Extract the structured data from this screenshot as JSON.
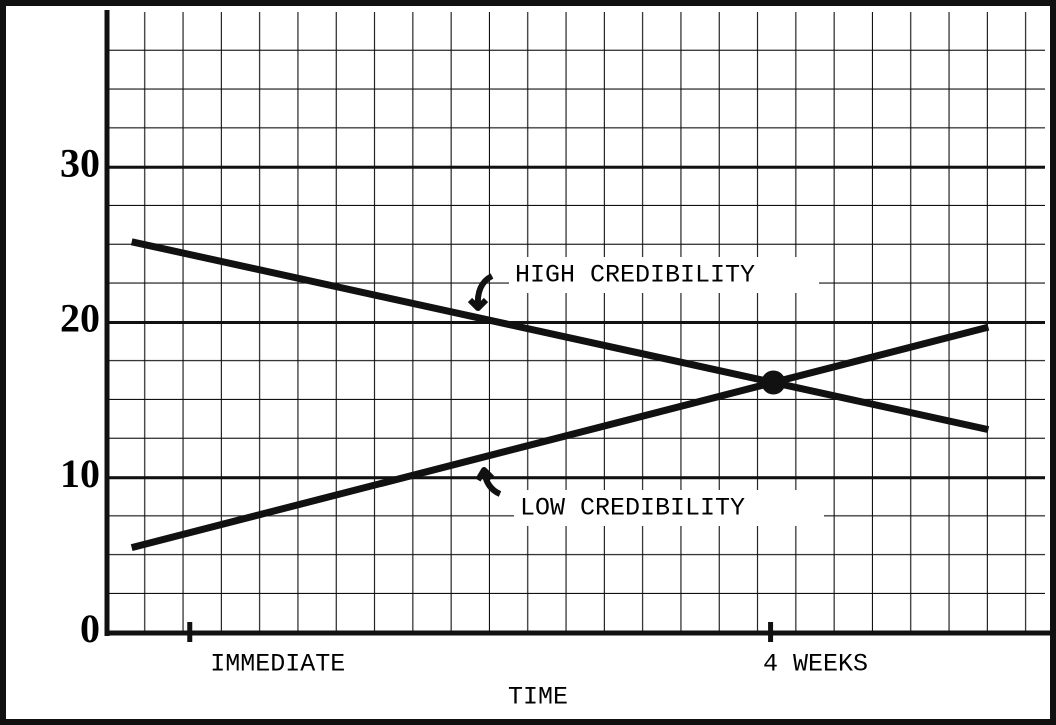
{
  "chart_data": {
    "type": "line",
    "x_label": "TIME",
    "x": [
      -0.4,
      5.5
    ],
    "series": [
      {
        "name": "HIGH CREDIBILITY",
        "color": "#111111",
        "values": [
          25.2,
          13.1
        ]
      },
      {
        "name": "LOW CREDIBILITY",
        "color": "#111111",
        "values": [
          5.5,
          19.7
        ]
      }
    ],
    "xlim": [
      -0.57,
      5.89
    ],
    "xticks": [
      {
        "value": 0,
        "label": "IMMEDIATE"
      },
      {
        "value": 4,
        "label": "4 WEEKS"
      }
    ],
    "ylim": [
      0,
      40
    ],
    "yticks": [
      0,
      10,
      20,
      30
    ],
    "grid": true
  }
}
